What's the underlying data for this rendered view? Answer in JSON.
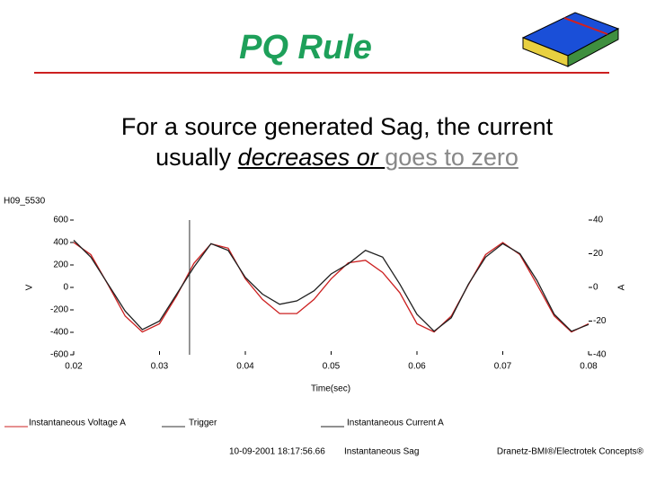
{
  "slide": {
    "title": "PQ Rule",
    "subtitle": {
      "line1": "For a source generated Sag, the current",
      "line2_plain": "usually ",
      "line2_underlined": "decreases or ",
      "line2_gray": "goes to zero"
    },
    "footer": {
      "timestamp": "10-09-2001 18:17:56.66",
      "event": "Instantaneous Sag",
      "credit": "Dranetz-BMI®/Electrotek Concepts®"
    }
  },
  "chart_data": {
    "type": "line",
    "title": "H09_5530",
    "xlabel": "Time(sec)",
    "ylabel": "V",
    "y2label": "A",
    "x": [
      0.02,
      0.022,
      0.024,
      0.026,
      0.028,
      0.03,
      0.032,
      0.034,
      0.036,
      0.038,
      0.04,
      0.042,
      0.044,
      0.046,
      0.048,
      0.05,
      0.052,
      0.054,
      0.056,
      0.058,
      0.06,
      0.062,
      0.064,
      0.066,
      0.068,
      0.07,
      0.072,
      0.074,
      0.076,
      0.078,
      0.08
    ],
    "series": [
      {
        "name": "Instantaneous Voltage  A",
        "color": "#cc2020",
        "axis": "y",
        "values": [
          400,
          292,
          25,
          -255,
          -397,
          -324,
          -75,
          214,
          388,
          350,
          77,
          -107,
          -233,
          -233,
          -107,
          77,
          219,
          242,
          134,
          -47,
          -324,
          -397,
          -255,
          25,
          292,
          400,
          292,
          25,
          -255,
          -397,
          -324
        ]
      },
      {
        "name": "Instantaneous Current  A",
        "color": "#202020",
        "axis": "y2",
        "values": [
          28,
          18,
          2,
          -14,
          -25,
          -20,
          -4,
          12,
          26,
          22,
          6,
          -4,
          -10,
          -8,
          -2,
          8,
          14,
          22,
          18,
          2,
          -16,
          -26,
          -18,
          2,
          18,
          26,
          20,
          4,
          -16,
          -26,
          -22
        ]
      }
    ],
    "trigger": {
      "name": "Trigger",
      "x": 0.0335,
      "color": "#303030"
    },
    "xlim": [
      0.02,
      0.08
    ],
    "xticks": [
      0.02,
      0.03,
      0.04,
      0.05,
      0.06,
      0.07,
      0.08
    ],
    "ylim": [
      -600,
      600
    ],
    "yticks": [
      -600,
      -400,
      -200,
      0,
      200,
      400,
      600
    ],
    "y2lim": [
      -40,
      40
    ],
    "y2ticks": [
      -40,
      -20,
      0,
      20,
      40
    ]
  }
}
